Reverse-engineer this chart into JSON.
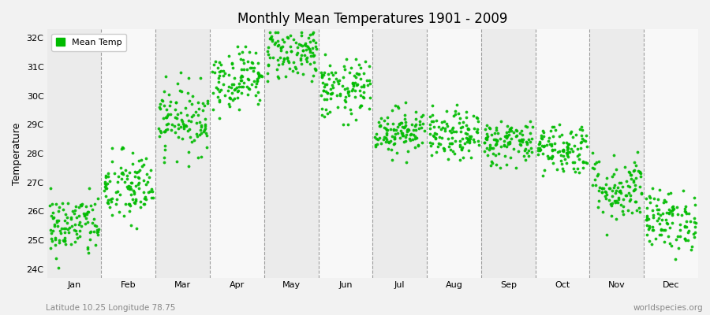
{
  "title": "Monthly Mean Temperatures 1901 - 2009",
  "ylabel": "Temperature",
  "subtitle_left": "Latitude 10.25 Longitude 78.75",
  "subtitle_right": "worldspecies.org",
  "legend_label": "Mean Temp",
  "dot_color": "#00bb00",
  "background_color": "#f2f2f2",
  "band_colors": [
    "#ebebeb",
    "#f8f8f8"
  ],
  "ylim": [
    23.7,
    32.3
  ],
  "yticks": [
    24,
    25,
    26,
    27,
    28,
    29,
    30,
    31,
    32
  ],
  "ytick_labels": [
    "24C",
    "25C",
    "26C",
    "27C",
    "28C",
    "29C",
    "30C",
    "31C",
    "32C"
  ],
  "months": [
    "Jan",
    "Feb",
    "Mar",
    "Apr",
    "May",
    "Jun",
    "Jul",
    "Aug",
    "Sep",
    "Oct",
    "Nov",
    "Dec"
  ],
  "month_means": [
    25.5,
    26.8,
    29.2,
    30.6,
    31.5,
    30.2,
    28.8,
    28.6,
    28.4,
    28.2,
    26.8,
    25.7
  ],
  "month_stds": [
    0.55,
    0.65,
    0.6,
    0.52,
    0.48,
    0.52,
    0.4,
    0.42,
    0.4,
    0.45,
    0.58,
    0.52
  ],
  "month_mins": [
    23.8,
    25.2,
    27.5,
    29.2,
    30.5,
    29.0,
    27.7,
    27.5,
    27.5,
    27.2,
    25.2,
    24.2
  ],
  "month_maxs": [
    26.8,
    28.5,
    30.8,
    31.7,
    32.2,
    31.5,
    30.0,
    29.8,
    29.6,
    29.5,
    28.3,
    27.1
  ],
  "n_years": 109,
  "seed": 42,
  "marker_size": 3.5,
  "dpi": 100,
  "figsize": [
    9.0,
    4.0
  ]
}
